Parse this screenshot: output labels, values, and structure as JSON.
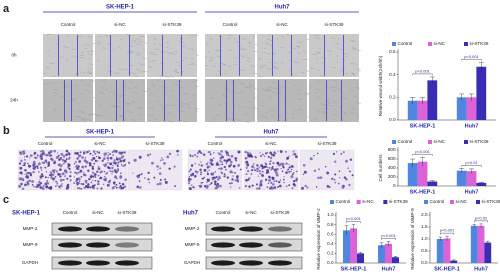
{
  "panels": {
    "a": {
      "label": "a",
      "cell_lines": [
        "SK-HEP-1",
        "Huh7"
      ],
      "conditions": [
        "Control",
        "si-NC",
        "si-STK39"
      ],
      "timepoints": [
        "0h",
        "24h"
      ]
    },
    "b": {
      "label": "b",
      "cell_lines": [
        "SK-HEP-1",
        "Huh7"
      ],
      "conditions": [
        "Control",
        "si-NC",
        "si-STK39"
      ]
    },
    "c": {
      "label": "c",
      "cell_lines": [
        "SK-HEP-1",
        "Huh7"
      ],
      "conditions": [
        "Control",
        "si-NC",
        "si-STK39"
      ],
      "proteins": [
        "MMP-2",
        "MMP-9",
        "GAPDH"
      ]
    }
  },
  "chart_data": [
    {
      "type": "bar",
      "ylabel": "Relative wound width(24h/0h)",
      "categories": [
        "SK-HEP-1",
        "Huh7"
      ],
      "series": [
        {
          "name": "Control",
          "color": "#4f86e0",
          "values": [
            0.17,
            0.2
          ],
          "errors": [
            0.03,
            0.03
          ]
        },
        {
          "name": "si-NC",
          "color": "#db62d8",
          "values": [
            0.17,
            0.2
          ],
          "errors": [
            0.03,
            0.03
          ]
        },
        {
          "name": "si-STK39",
          "color": "#3a2db5",
          "values": [
            0.35,
            0.47
          ],
          "errors": [
            0.03,
            0.04
          ]
        }
      ],
      "ylim": [
        0,
        0.6
      ],
      "yticks": [
        {
          "value": 0,
          "label": "0.0"
        },
        0.2,
        0.4,
        0.6
      ],
      "annotations": [
        "p<0.001",
        "p<0.001"
      ]
    },
    {
      "type": "bar",
      "ylabel": "Cell numbers",
      "categories": [
        "SK-HEP-1",
        "Huh7"
      ],
      "series": [
        {
          "name": "Control",
          "color": "#4f86e0",
          "values": [
            510,
            340
          ],
          "errors": [
            90,
            50
          ]
        },
        {
          "name": "si-NC",
          "color": "#db62d8",
          "values": [
            540,
            330
          ],
          "errors": [
            100,
            50
          ]
        },
        {
          "name": "si-STK39",
          "color": "#3a2db5",
          "values": [
            100,
            70
          ],
          "errors": [
            20,
            15
          ]
        }
      ],
      "ylim": [
        0,
        800
      ],
      "yticks": [
        0,
        200,
        400,
        600,
        800
      ],
      "annotations": [
        "p<0.001",
        "p<0.01"
      ]
    },
    {
      "type": "bar",
      "ylabel": "Relative expression of MMP-2",
      "categories": [
        "SK-HEP-1",
        "Huh7"
      ],
      "series": [
        {
          "name": "Control",
          "color": "#4f86e0",
          "values": [
            0.68,
            0.37
          ],
          "errors": [
            0.1,
            0.05
          ]
        },
        {
          "name": "si-NC",
          "color": "#db62d8",
          "values": [
            0.72,
            0.4
          ],
          "errors": [
            0.08,
            0.05
          ]
        },
        {
          "name": "si-STK39",
          "color": "#3a2db5",
          "values": [
            0.2,
            0.12
          ],
          "errors": [
            0.02,
            0.02
          ]
        }
      ],
      "ylim": [
        0,
        1.0
      ],
      "yticks": [
        {
          "value": 0,
          "label": "0.0"
        },
        0.2,
        0.4,
        0.6,
        0.8,
        {
          "value": 1.0,
          "label": "1.0"
        }
      ],
      "annotations": [
        "p<0.001",
        "p<0.001"
      ]
    },
    {
      "type": "bar",
      "ylabel": "Relative expression of MMP-9",
      "categories": [
        "SK-HEP-1",
        "Huh7"
      ],
      "series": [
        {
          "name": "Control",
          "color": "#4f86e0",
          "values": [
            1.0,
            1.55
          ],
          "errors": [
            0.08,
            0.06
          ]
        },
        {
          "name": "si-NC",
          "color": "#db62d8",
          "values": [
            1.02,
            1.55
          ],
          "errors": [
            0.1,
            0.08
          ]
        },
        {
          "name": "si-STK39",
          "color": "#3a2db5",
          "values": [
            0.1,
            0.85
          ],
          "errors": [
            0.03,
            0.06
          ]
        }
      ],
      "ylim": [
        0,
        2.0
      ],
      "yticks": [
        {
          "value": 0,
          "label": "0.0"
        },
        0.5,
        {
          "value": 1.0,
          "label": "1.0"
        },
        1.5,
        {
          "value": 2.0,
          "label": "2.0"
        }
      ],
      "annotations": [
        "p<0.001",
        "p<0.01"
      ]
    }
  ]
}
